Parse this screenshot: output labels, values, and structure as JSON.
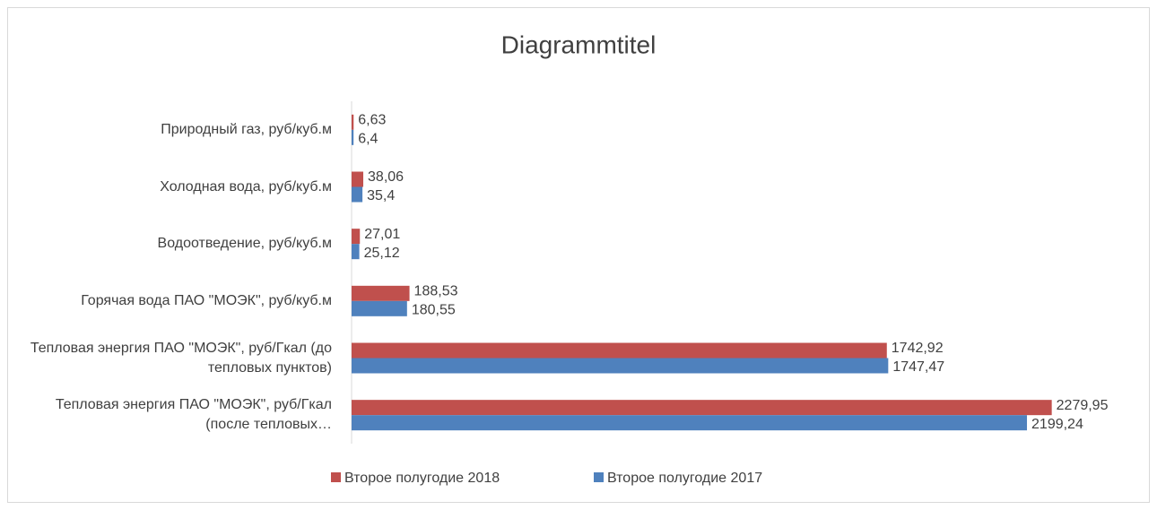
{
  "chart_data": {
    "type": "hbar",
    "title": "Diagrammtitel",
    "categories": [
      "Природный газ, руб/куб.м",
      "Холодная вода, руб/куб.м",
      "Водоотведение, руб/куб.м",
      "Горячая вода ПАО \"МОЭК\", руб/куб.м",
      "Тепловая энергия ПАО \"МОЭК\", руб/Гкал (до тепловых пунктов)",
      "Тепловая энергия ПАО \"МОЭК\", руб/Гкал (после тепловых…"
    ],
    "series": [
      {
        "name": "Второе полугодие 2018",
        "color": "#c0504d",
        "values": [
          6.63,
          38.06,
          27.01,
          188.53,
          1742.92,
          2279.95
        ],
        "value_labels": [
          "6,63",
          "38,06",
          "27,01",
          "188,53",
          "1742,92",
          "2279,95"
        ]
      },
      {
        "name": "Второе полугодие 2017",
        "color": "#4f81bd",
        "values": [
          6.4,
          35.4,
          25.12,
          180.55,
          1747.47,
          2199.24
        ],
        "value_labels": [
          "6,4",
          "35,4",
          "25,12",
          "180,55",
          "1747,47",
          "2199,24"
        ]
      }
    ],
    "xlim": [
      0,
      2500
    ],
    "legend": "bottom"
  }
}
